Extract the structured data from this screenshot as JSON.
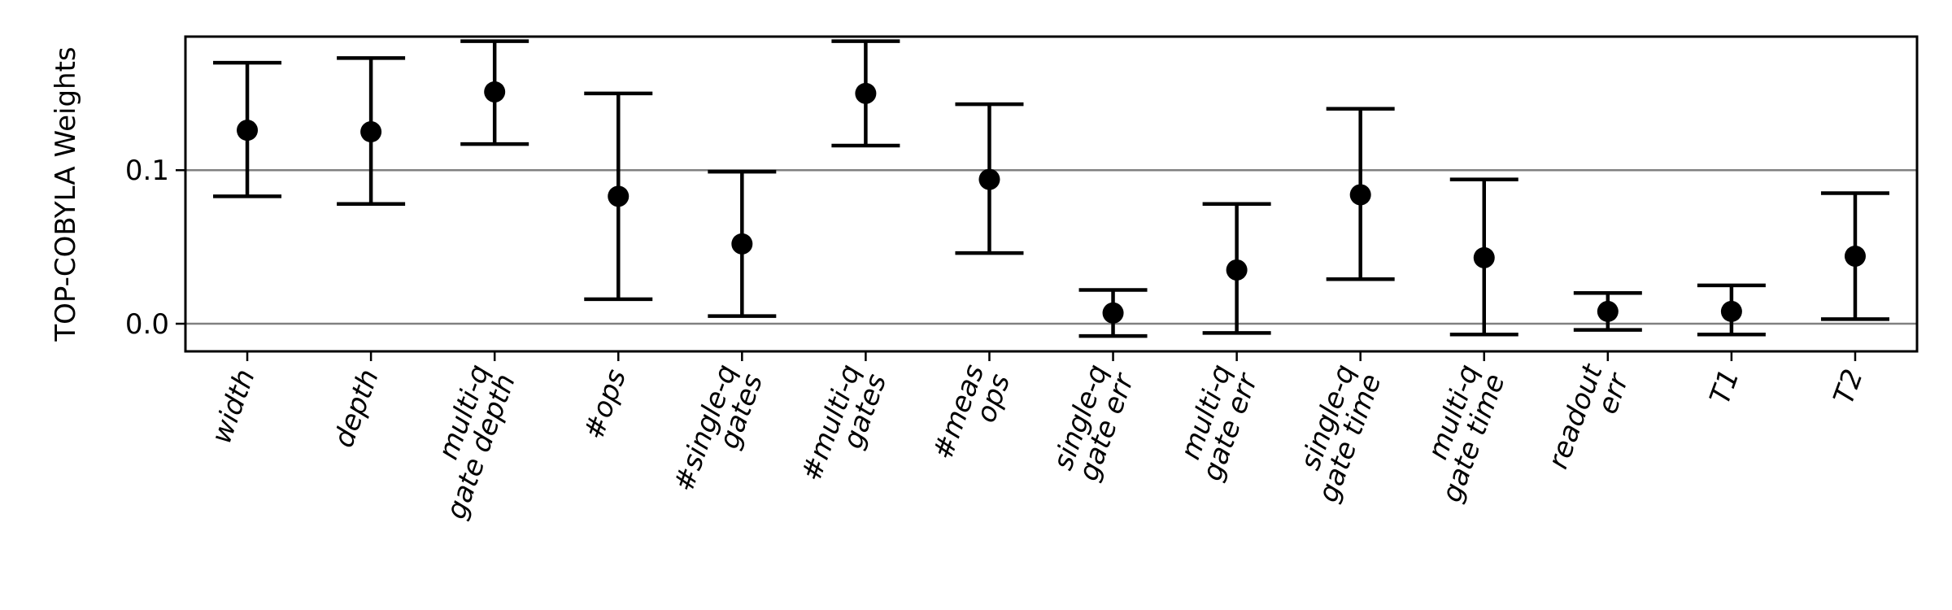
{
  "chart_data": {
    "type": "scatter",
    "subtype": "errorbar",
    "title": "",
    "xlabel": "",
    "ylabel": "TOP-COBYLA Weights",
    "ylim": [
      -0.018,
      0.187
    ],
    "yticks": [
      0.0,
      0.1
    ],
    "ytick_labels": [
      "0.0",
      "0.1"
    ],
    "grid": "horizontal lines at y ticks",
    "marker_color": "#000000",
    "gridline_color": "#808080",
    "categories": [
      [
        "width"
      ],
      [
        "depth"
      ],
      [
        "multi-q",
        "gate depth"
      ],
      [
        "#ops"
      ],
      [
        "#single-q",
        "gates"
      ],
      [
        "#multi-q",
        "gates"
      ],
      [
        "#meas",
        "ops"
      ],
      [
        "single-q",
        "gate err"
      ],
      [
        "multi-q",
        "gate err"
      ],
      [
        "single-q",
        "gate time"
      ],
      [
        "multi-q",
        "gate time"
      ],
      [
        "readout",
        "err"
      ],
      [
        "T1"
      ],
      [
        "T2"
      ]
    ],
    "series": [
      {
        "values": [
          0.126,
          0.125,
          0.151,
          0.083,
          0.052,
          0.15,
          0.094,
          0.007,
          0.035,
          0.084,
          0.043,
          0.008,
          0.008,
          0.044
        ],
        "lower": [
          0.083,
          0.078,
          0.117,
          0.016,
          0.005,
          0.116,
          0.046,
          -0.008,
          -0.006,
          0.029,
          -0.007,
          -0.004,
          -0.007,
          0.003
        ],
        "upper": [
          0.17,
          0.173,
          0.184,
          0.15,
          0.099,
          0.184,
          0.143,
          0.022,
          0.078,
          0.14,
          0.094,
          0.02,
          0.025,
          0.085
        ]
      }
    ]
  }
}
